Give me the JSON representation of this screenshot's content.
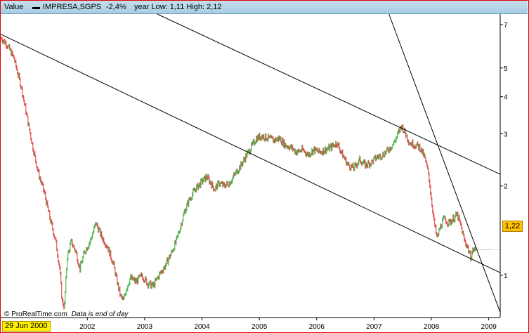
{
  "header": {
    "label": "Value",
    "instrument": "IMPRESA,SGPS",
    "change": "-2,4%",
    "range": "year Low: 1,11 High: 2,12"
  },
  "badges": {
    "start_date": "29 Jun 2000",
    "last_price": "1,22"
  },
  "footer": {
    "source": "© ProRealTime.com",
    "note": "Data is end of day"
  },
  "colors": {
    "up": "#33aa33",
    "down": "#dd3333",
    "trendline": "#000000",
    "header_bg": "#b8d6e8",
    "border": "#e00000",
    "price_badge": "#ffc200",
    "date_badge": "#ffef00"
  },
  "chart_data": {
    "type": "line",
    "title": "IMPRESA,SGPS",
    "y_scale": "log",
    "ylim": [
      0.72,
      7.6
    ],
    "xlim": [
      2000.49,
      2009.2
    ],
    "y_ticks": [
      {
        "value": 1,
        "label": "1"
      },
      {
        "value": 2,
        "label": "2"
      },
      {
        "value": 3,
        "label": "3"
      },
      {
        "value": 4,
        "label": "4"
      },
      {
        "value": 5,
        "label": "5"
      },
      {
        "value": 7,
        "label": "7"
      }
    ],
    "x_ticks": [
      {
        "value": 2002.0,
        "label": "2002"
      },
      {
        "value": 2003.0,
        "label": "2003"
      },
      {
        "value": 2004.0,
        "label": "2004"
      },
      {
        "value": 2005.0,
        "label": "2005"
      },
      {
        "value": 2006.0,
        "label": "2006"
      },
      {
        "value": 2007.0,
        "label": "2007"
      },
      {
        "value": 2008.0,
        "label": "2008"
      },
      {
        "value": 2009.0,
        "label": "2009"
      }
    ],
    "series": [
      {
        "values": [
          [
            2000.5,
            6.3
          ],
          [
            2000.6,
            6.0
          ],
          [
            2000.72,
            5.4
          ],
          [
            2000.85,
            4.3
          ],
          [
            2000.95,
            3.4
          ],
          [
            2001.05,
            2.7
          ],
          [
            2001.15,
            2.2
          ],
          [
            2001.25,
            1.9
          ],
          [
            2001.35,
            1.55
          ],
          [
            2001.45,
            1.3
          ],
          [
            2001.52,
            1.05
          ],
          [
            2001.56,
            0.82
          ],
          [
            2001.6,
            0.78
          ],
          [
            2001.65,
            1.15
          ],
          [
            2001.72,
            1.3
          ],
          [
            2001.8,
            1.2
          ],
          [
            2001.87,
            1.05
          ],
          [
            2001.95,
            1.2
          ],
          [
            2002.05,
            1.3
          ],
          [
            2002.15,
            1.5
          ],
          [
            2002.25,
            1.35
          ],
          [
            2002.35,
            1.25
          ],
          [
            2002.45,
            1.1
          ],
          [
            2002.52,
            0.95
          ],
          [
            2002.58,
            0.85
          ],
          [
            2002.63,
            0.82
          ],
          [
            2002.68,
            0.9
          ],
          [
            2002.75,
            0.98
          ],
          [
            2002.85,
            0.95
          ],
          [
            2002.95,
            1.0
          ],
          [
            2003.05,
            0.94
          ],
          [
            2003.15,
            0.92
          ],
          [
            2003.25,
            1.0
          ],
          [
            2003.35,
            1.07
          ],
          [
            2003.45,
            1.17
          ],
          [
            2003.55,
            1.3
          ],
          [
            2003.62,
            1.45
          ],
          [
            2003.7,
            1.65
          ],
          [
            2003.78,
            1.8
          ],
          [
            2003.88,
            1.95
          ],
          [
            2003.98,
            2.05
          ],
          [
            2004.08,
            2.15
          ],
          [
            2004.15,
            2.05
          ],
          [
            2004.22,
            1.95
          ],
          [
            2004.3,
            2.05
          ],
          [
            2004.38,
            2.0
          ],
          [
            2004.48,
            2.05
          ],
          [
            2004.58,
            2.2
          ],
          [
            2004.68,
            2.35
          ],
          [
            2004.78,
            2.55
          ],
          [
            2004.88,
            2.75
          ],
          [
            2004.95,
            2.9
          ],
          [
            2005.05,
            2.95
          ],
          [
            2005.15,
            2.9
          ],
          [
            2005.25,
            2.85
          ],
          [
            2005.35,
            2.9
          ],
          [
            2005.45,
            2.75
          ],
          [
            2005.55,
            2.7
          ],
          [
            2005.65,
            2.6
          ],
          [
            2005.75,
            2.65
          ],
          [
            2005.85,
            2.55
          ],
          [
            2005.95,
            2.65
          ],
          [
            2006.05,
            2.6
          ],
          [
            2006.15,
            2.65
          ],
          [
            2006.25,
            2.7
          ],
          [
            2006.35,
            2.8
          ],
          [
            2006.45,
            2.55
          ],
          [
            2006.55,
            2.35
          ],
          [
            2006.65,
            2.3
          ],
          [
            2006.75,
            2.45
          ],
          [
            2006.85,
            2.35
          ],
          [
            2006.95,
            2.4
          ],
          [
            2007.05,
            2.5
          ],
          [
            2007.15,
            2.55
          ],
          [
            2007.25,
            2.65
          ],
          [
            2007.35,
            2.8
          ],
          [
            2007.42,
            3.0
          ],
          [
            2007.48,
            3.2
          ],
          [
            2007.55,
            3.0
          ],
          [
            2007.62,
            2.8
          ],
          [
            2007.72,
            2.75
          ],
          [
            2007.8,
            2.7
          ],
          [
            2007.88,
            2.5
          ],
          [
            2007.95,
            2.2
          ],
          [
            2008.0,
            1.8
          ],
          [
            2008.05,
            1.5
          ],
          [
            2008.1,
            1.33
          ],
          [
            2008.15,
            1.45
          ],
          [
            2008.22,
            1.55
          ],
          [
            2008.3,
            1.5
          ],
          [
            2008.38,
            1.55
          ],
          [
            2008.45,
            1.6
          ],
          [
            2008.52,
            1.45
          ],
          [
            2008.58,
            1.3
          ],
          [
            2008.63,
            1.25
          ],
          [
            2008.68,
            1.15
          ],
          [
            2008.73,
            1.22
          ],
          [
            2008.77,
            1.22
          ]
        ]
      }
    ],
    "trendlines": [
      {
        "start": [
          2000.49,
          6.5
        ],
        "end": [
          2009.2,
          1.02
        ]
      },
      {
        "start": [
          2003.22,
          7.6
        ],
        "end": [
          2009.2,
          2.19
        ]
      },
      {
        "start": [
          2007.26,
          7.6
        ],
        "end": [
          2009.2,
          0.75
        ]
      }
    ]
  }
}
